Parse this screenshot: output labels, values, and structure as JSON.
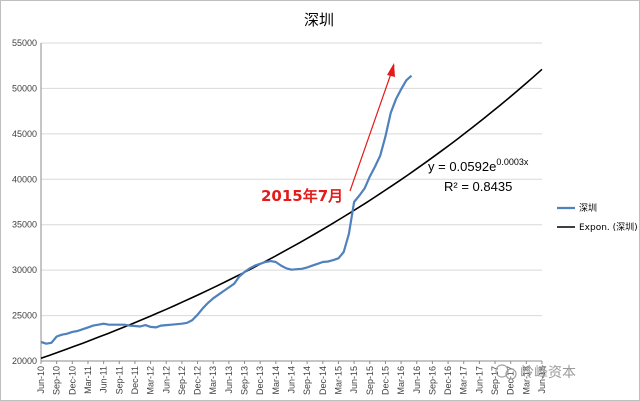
{
  "chart_data": {
    "type": "line",
    "title": "深圳",
    "ylim": [
      20000,
      55000
    ],
    "yticks": [
      "20000",
      "25000",
      "30000",
      "35000",
      "40000",
      "45000",
      "50000",
      "55000"
    ],
    "categories": [
      "Jun-10",
      "Sep-10",
      "Dec-10",
      "Mar-11",
      "Jun-11",
      "Sep-11",
      "Dec-11",
      "Mar-12",
      "Jun-12",
      "Sep-12",
      "Dec-12",
      "Mar-13",
      "Jun-13",
      "Sep-13",
      "Dec-13",
      "Mar-14",
      "Jun-14",
      "Sep-14",
      "Dec-14",
      "Mar-15",
      "Jun-15",
      "Sep-15",
      "Dec-15",
      "Mar-16",
      "Jun-16",
      "Sep-16",
      "Dec-16",
      "Mar-17",
      "Jun-17",
      "Sep-17",
      "Dec-17",
      "Mar-18",
      "Jun-18"
    ],
    "series": [
      {
        "name": "深圳",
        "color": "#4f81bd",
        "x": [
          0,
          1,
          2,
          3,
          4,
          5,
          6,
          7,
          8,
          9,
          10,
          11,
          12,
          13,
          14,
          15,
          16,
          17,
          18,
          19,
          20,
          21,
          22,
          23,
          24,
          25,
          26,
          27,
          28,
          29,
          30,
          31,
          32,
          33,
          34,
          35,
          36,
          37,
          38,
          39,
          40,
          41,
          42,
          43,
          44,
          45,
          46,
          47,
          48,
          49,
          50,
          51,
          52,
          53,
          54,
          55,
          56,
          57,
          58,
          59,
          60,
          61,
          62,
          63,
          64,
          65,
          66,
          67,
          68,
          69,
          70,
          71
        ],
        "values": [
          22100,
          21900,
          22000,
          22700,
          22900,
          23000,
          23200,
          23300,
          23500,
          23700,
          23900,
          24000,
          24100,
          24000,
          24000,
          24000,
          24000,
          23900,
          23850,
          23800,
          23950,
          23750,
          23700,
          23900,
          23950,
          24000,
          24050,
          24100,
          24200,
          24500,
          25100,
          25800,
          26400,
          26900,
          27300,
          27700,
          28100,
          28500,
          29300,
          29800,
          30200,
          30500,
          30700,
          30900,
          31000,
          30900,
          30500,
          30200,
          30050,
          30100,
          30150,
          30300,
          30500,
          30700,
          30900,
          30950,
          31100,
          31300,
          32000,
          34000,
          37500,
          38200,
          39000,
          40300,
          41400,
          42600,
          44700,
          47300,
          48800,
          49900,
          50900,
          51400
        ]
      }
    ],
    "trendline": {
      "name": "Expon. (深圳)",
      "type": "exponential",
      "a": 0.0592,
      "b": 0.0003,
      "color": "#000000"
    },
    "annotations": {
      "equation_prefix": "y = 0.0592e",
      "equation_exponent": "0.0003x",
      "r_squared": "R² = 0.8435",
      "note": "2015年7月",
      "note_color": "#e31b1b"
    },
    "legend": {
      "position": "right"
    }
  },
  "watermark": "岭峰资本"
}
